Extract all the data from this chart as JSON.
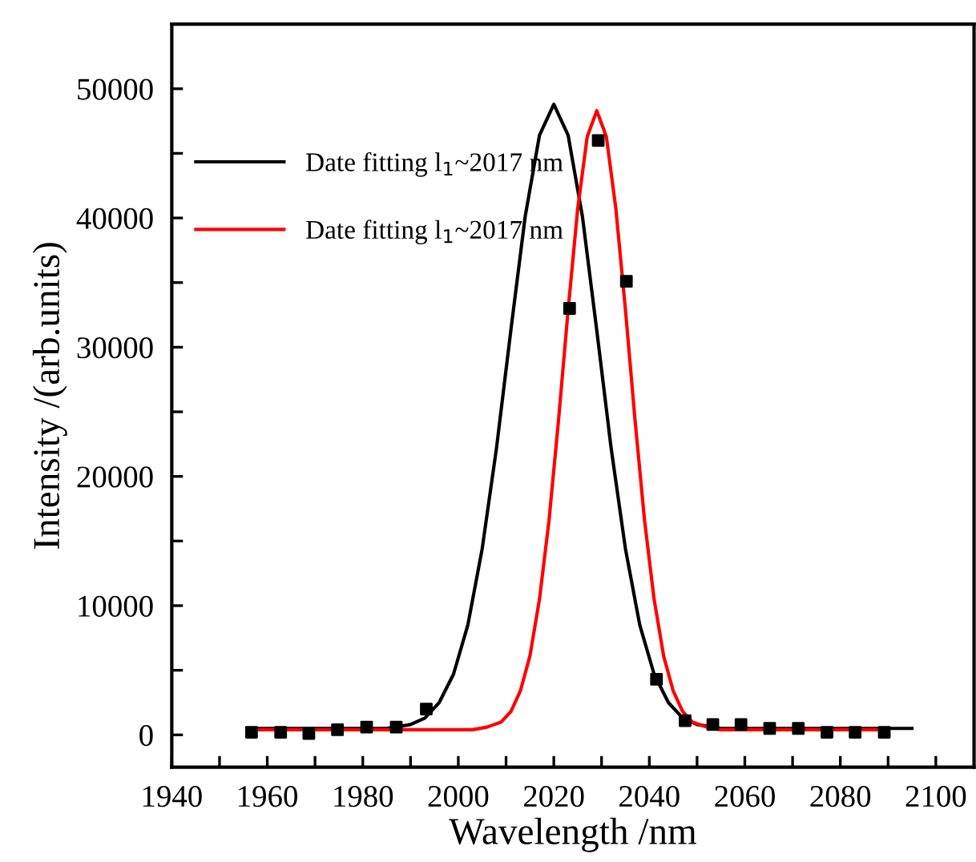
{
  "chart_data": {
    "type": "line",
    "xlabel": "Wavelength /nm",
    "ylabel": "Intensity /(arb.units)",
    "xlim": [
      1940,
      2108
    ],
    "ylim": [
      -2500,
      55000
    ],
    "xticks": [
      1940,
      {
        "value": 1950,
        "label": null
      },
      1960,
      {
        "value": 1970,
        "label": null
      },
      1980,
      {
        "value": 1990,
        "label": null
      },
      2000,
      {
        "value": 2010,
        "label": null
      },
      2020,
      {
        "value": 2030,
        "label": null
      },
      2040,
      {
        "value": 2050,
        "label": null
      },
      2060,
      {
        "value": 2070,
        "label": null
      },
      2080,
      {
        "value": 2090,
        "label": null
      },
      2100
    ],
    "yticks": [
      0,
      {
        "value": 5000,
        "label": null
      },
      10000,
      {
        "value": 15000,
        "label": null
      },
      20000,
      {
        "value": 25000,
        "label": null
      },
      30000,
      {
        "value": 35000,
        "label": null
      },
      40000,
      {
        "value": 45000,
        "label": null
      },
      50000
    ],
    "grid": false,
    "legend": "top left",
    "series": [
      {
        "name": "Date fitting l$_{1}$~2017 nm",
        "color": "#000000",
        "marker": "none",
        "line_style": "solid",
        "x": [
          1956,
          1970,
          1980,
          1985,
          1990,
          1993,
          1996,
          1999,
          2002,
          2005,
          2008,
          2011,
          2014,
          2017,
          2020,
          2023,
          2026,
          2029,
          2032,
          2035,
          2038,
          2041,
          2044,
          2047,
          2050,
          2055,
          2060,
          2095
        ],
        "values": [
          500,
          500,
          500,
          500,
          800,
          1300,
          2500,
          4700,
          8500,
          14400,
          22200,
          31300,
          40100,
          46400,
          48800,
          46400,
          40100,
          31300,
          22200,
          14400,
          8500,
          4700,
          2500,
          1300,
          800,
          500,
          500,
          500
        ]
      },
      {
        "name": "Date fitting l$_{1}$~2017 nm",
        "color": "#ff0000",
        "marker": "none",
        "line_style": "solid",
        "x": [
          1956,
          2000,
          2003,
          2006,
          2009,
          2011,
          2013,
          2015,
          2017,
          2019,
          2021,
          2023,
          2025,
          2027,
          2029,
          2031,
          2033,
          2035,
          2037,
          2039,
          2041,
          2043,
          2045,
          2047,
          2049,
          2052,
          2055,
          2060,
          2089
        ],
        "values": [
          400,
          400,
          400,
          600,
          1000,
          1800,
          3400,
          6100,
          10500,
          16600,
          24400,
          32900,
          40700,
          46300,
          48300,
          46300,
          40700,
          32900,
          24400,
          16600,
          10500,
          6100,
          3400,
          1800,
          1000,
          600,
          400,
          400,
          400
        ]
      },
      {
        "type": "scatter",
        "color": "#000000",
        "marker": "square",
        "x": [
          1956.7,
          1962.8,
          1968.7,
          1974.7,
          1980.8,
          1987,
          1993.3,
          2023.3,
          2029.3,
          2035.2,
          2041.5,
          2047.5,
          2053.3,
          2059.2,
          2065.2,
          2071.2,
          2077.2,
          2083.1,
          2089.2
        ],
        "values": [
          200,
          200,
          100,
          400,
          600,
          600,
          2000,
          33000,
          46000,
          35100,
          4300,
          1100,
          800,
          800,
          500,
          500,
          200,
          200,
          200
        ]
      }
    ]
  }
}
